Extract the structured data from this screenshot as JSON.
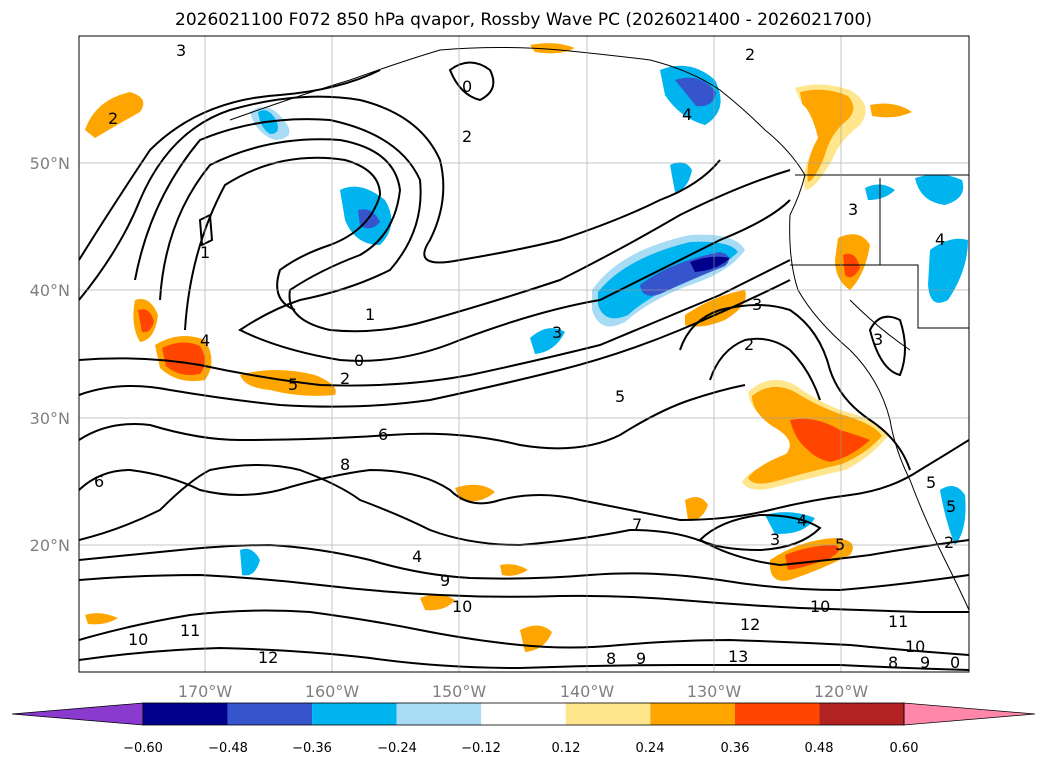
{
  "title": "2026021100 F072 850 hPa qvapor, Rossby Wave PC (2026021400 - 2026021700)",
  "lon_labels": [
    "170°W",
    "160°W",
    "150°W",
    "140°W",
    "130°W",
    "120°W"
  ],
  "lat_labels": [
    "50°N",
    "40°N",
    "30°N",
    "20°N"
  ],
  "colorbar": {
    "ticks": [
      "−0.60",
      "−0.48",
      "−0.36",
      "−0.24",
      "−0.12",
      "0.12",
      "0.24",
      "0.36",
      "0.48",
      "0.60"
    ],
    "colors": [
      "#8a3acf",
      "#00008c",
      "#3654cc",
      "#00b4f0",
      "#a8dcf5",
      "#ffffff",
      "#ffe68c",
      "#ffa500",
      "#ff4500",
      "#b22222",
      "#ff88aa"
    ]
  },
  "contour_labels": [
    "3",
    "2",
    "0",
    "2",
    "1",
    "1",
    "0",
    "2",
    "5",
    "4",
    "6",
    "8",
    "6",
    "5",
    "3",
    "2",
    "3",
    "7",
    "9",
    "10",
    "11",
    "12",
    "10",
    "12",
    "13",
    "8",
    "9",
    "4",
    "3",
    "5",
    "10",
    "11",
    "10",
    "8",
    "9",
    "0",
    "4",
    "2",
    "4",
    "5",
    "3",
    "4",
    "3",
    "5",
    "2"
  ]
}
